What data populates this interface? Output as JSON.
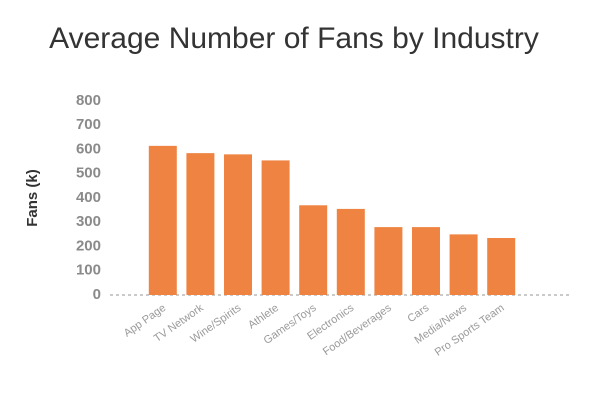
{
  "chart_data": {
    "type": "bar",
    "title": "Average Number of Fans by Industry",
    "y_label": "Fans (k)",
    "categories": [
      "App Page",
      "TV Network",
      "Wine/Spirits",
      "Athlete",
      "Games/Toys",
      "Electronics",
      "Food/Beverages",
      "Cars",
      "Media/News",
      "Pro Sports Team"
    ],
    "values": [
      615,
      585,
      580,
      555,
      370,
      355,
      280,
      280,
      250,
      235
    ],
    "color": "#ef8442",
    "ylim": [
      0,
      800
    ],
    "yticks": [
      0,
      100,
      200,
      300,
      400,
      500,
      600,
      700,
      800
    ]
  }
}
